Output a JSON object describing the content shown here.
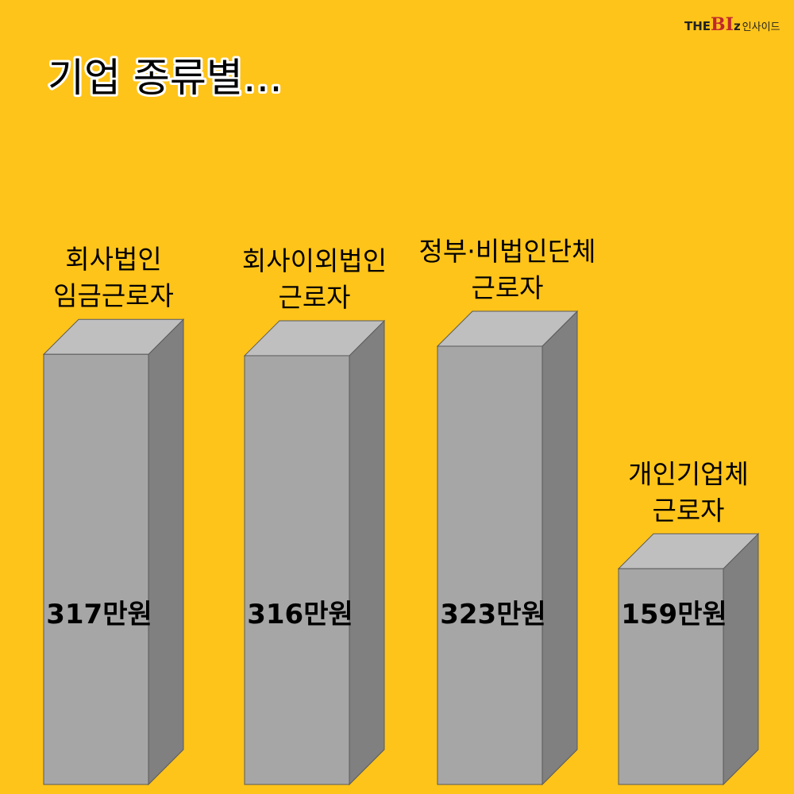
{
  "title": "기업 종류별…",
  "logo": {
    "part1": "THE",
    "part2": "BI",
    "part3": "z",
    "part4": "인사이드"
  },
  "colors": {
    "background": "#FFC41A",
    "bar_front": "#A6A6A6",
    "bar_top": "#BFBFBF",
    "bar_side": "#808080",
    "bar_edge": "#5A5A5A",
    "title_outline": "#FFFFFF",
    "logo_accent": "#C0282D"
  },
  "chart_data": {
    "type": "bar",
    "style": "3d-column",
    "title": "기업 종류별…",
    "categories": [
      [
        "회사법인",
        "임금근로자"
      ],
      [
        "회사이외법인",
        "근로자"
      ],
      [
        "정부·비법인단체",
        "근로자"
      ],
      [
        "개인기업체",
        "근로자"
      ]
    ],
    "values": [
      317,
      316,
      323,
      159
    ],
    "data_labels": [
      "317만원",
      "316만원",
      "323만원",
      "159만원"
    ],
    "unit": "만원",
    "grid": false,
    "legend": "none"
  }
}
